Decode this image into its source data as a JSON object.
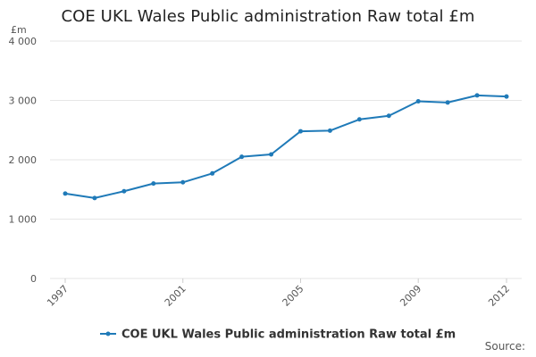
{
  "chart_data": {
    "type": "line",
    "title": "COE UKL Wales Public administration Raw total £m",
    "ylabel": "£m",
    "xlabel": "",
    "x": [
      1997,
      1998,
      1999,
      2000,
      2001,
      2002,
      2003,
      2004,
      2005,
      2006,
      2007,
      2008,
      2009,
      2010,
      2011,
      2012
    ],
    "series": [
      {
        "name": "COE UKL Wales Public administration Raw total £m",
        "values": [
          1430,
          1355,
          1470,
          1600,
          1620,
          1770,
          2050,
          2090,
          2480,
          2490,
          2680,
          2740,
          2985,
          2965,
          3085,
          3065
        ],
        "color": "#1f7ab8"
      }
    ],
    "x_tick_labels": [
      "1997",
      "2001",
      "2005",
      "2009",
      "2012"
    ],
    "y_tick_labels": [
      "0",
      "1 000",
      "2 000",
      "3 000",
      "4 000"
    ],
    "xlim": [
      1997,
      2012
    ],
    "ylim": [
      0,
      4000
    ],
    "grid": true,
    "legend_position": "bottom",
    "source": "Source:"
  }
}
